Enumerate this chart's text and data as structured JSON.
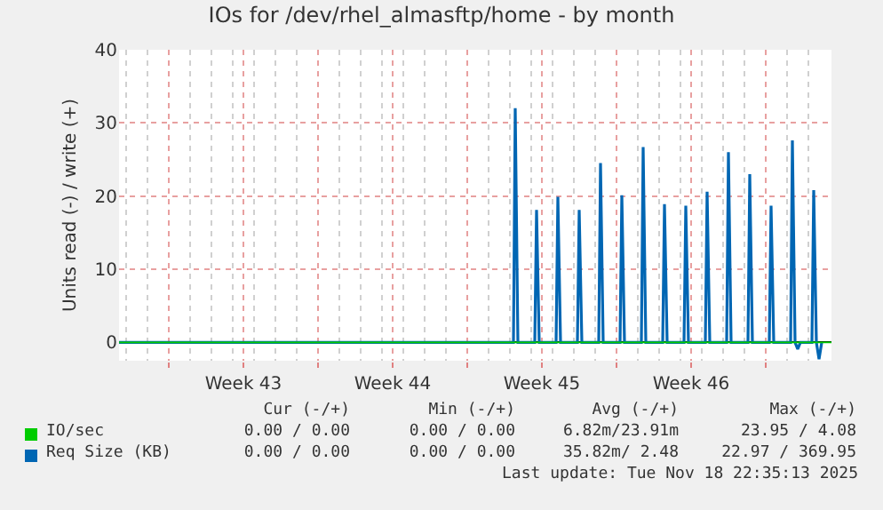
{
  "chart_data": {
    "type": "line",
    "title": "IOs for /dev/rhel_almasftp/home - by month",
    "ylabel": "Units read (-) / write (+)",
    "xlim": [
      "2025-10-16T16:00",
      "2025-11-19T02:00"
    ],
    "xticks": [
      {
        "value": "2025-10-19",
        "label": null
      },
      {
        "value": "2025-10-22T12:00",
        "label": "Week 43"
      },
      {
        "value": "2025-10-26",
        "label": null
      },
      {
        "value": "2025-10-29T12:00",
        "label": "Week 44"
      },
      {
        "value": "2025-11-02",
        "label": null
      },
      {
        "value": "2025-11-05T12:00",
        "label": "Week 45"
      },
      {
        "value": "2025-11-09",
        "label": null
      },
      {
        "value": "2025-11-12T12:00",
        "label": "Week 46"
      },
      {
        "value": "2025-11-16",
        "label": null
      }
    ],
    "ylim": [
      -2.5,
      40
    ],
    "yticks": [
      0,
      10,
      20,
      30,
      40
    ],
    "grid": true,
    "legend": "bottom",
    "series": [
      {
        "name": "IO/sec",
        "color": "#00cc00",
        "x": [
          "2025-10-16T16:00",
          "2025-11-19T02:00"
        ],
        "values": [
          0,
          0
        ]
      },
      {
        "name": "Req Size (KB)",
        "color": "#0066b3",
        "x": [
          "2025-10-16T16:00",
          "2025-11-04T04:00",
          "2025-11-04T06:00",
          "2025-11-04T09:00",
          "2025-11-05T04:00",
          "2025-11-05T06:00",
          "2025-11-05T09:00",
          "2025-11-06T04:00",
          "2025-11-06T06:00",
          "2025-11-06T09:00",
          "2025-11-07T04:00",
          "2025-11-07T06:00",
          "2025-11-07T09:00",
          "2025-11-08T04:00",
          "2025-11-08T06:00",
          "2025-11-08T09:00",
          "2025-11-09T04:00",
          "2025-11-09T06:00",
          "2025-11-09T09:00",
          "2025-11-10T04:00",
          "2025-11-10T06:00",
          "2025-11-10T09:00",
          "2025-11-11T04:00",
          "2025-11-11T06:00",
          "2025-11-11T09:00",
          "2025-11-12T04:00",
          "2025-11-12T06:00",
          "2025-11-12T09:00",
          "2025-11-13T04:00",
          "2025-11-13T06:00",
          "2025-11-13T09:00",
          "2025-11-14T04:00",
          "2025-11-14T06:00",
          "2025-11-14T09:00",
          "2025-11-15T04:00",
          "2025-11-15T06:00",
          "2025-11-15T09:00",
          "2025-11-16T04:00",
          "2025-11-16T06:00",
          "2025-11-16T09:00",
          "2025-11-17T04:00",
          "2025-11-17T06:00",
          "2025-11-17T09:00",
          "2025-11-17T12:00",
          "2025-11-17T15:00",
          "2025-11-18T04:00",
          "2025-11-18T06:00",
          "2025-11-18T09:00",
          "2025-11-18T12:00",
          "2025-11-18T15:00"
        ],
        "values": [
          0,
          0,
          32,
          0,
          0,
          18.1,
          0,
          0,
          19.9,
          0,
          0,
          18.1,
          0,
          0,
          24.5,
          0,
          0,
          20.1,
          0,
          0,
          26.7,
          0,
          0,
          18.9,
          0,
          0,
          18.7,
          0,
          0,
          20.6,
          0,
          0,
          26,
          0,
          0,
          23,
          0,
          0,
          18.7,
          0,
          0,
          27.6,
          0,
          -0.9,
          0,
          0,
          20.8,
          0,
          -2.3,
          0
        ]
      }
    ],
    "annotations": [
      "Cur (-/+)",
      "Min (-/+)",
      "Avg (-/+)",
      "Max (-/+)",
      "0.00 / 0.00",
      "0.00 / 0.00",
      "6.82m/23.91m",
      "23.95 / 4.08",
      "0.00 / 0.00",
      "0.00 / 0.00",
      "35.82m/ 2.48",
      "22.97 / 369.95",
      "Last update: Tue Nov 18 22:35:13 2025"
    ]
  }
}
